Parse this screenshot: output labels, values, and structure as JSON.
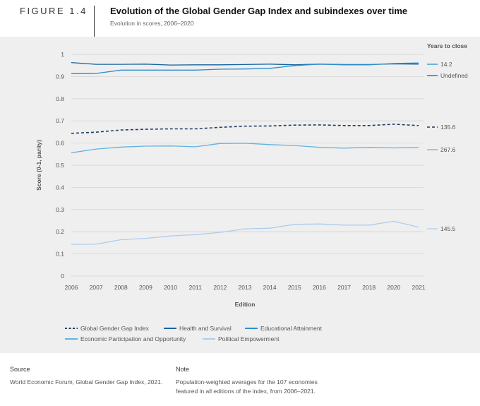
{
  "figure": {
    "label": "FIGURE 1.4",
    "title": "Evolution of the Global Gender Gap Index and subindexes over time",
    "subtitle": "Evolution in scores, 2006–2020"
  },
  "footer": {
    "source_heading": "Source",
    "source_text": "World Economic Forum, Global Gender Gap Index, 2021.",
    "note_heading": "Note",
    "note_text": "Population-weighted averages for the 107 economies featured in all editions of the index, from 2006–2021."
  },
  "colors": {
    "panel_bg": "#efefef",
    "gridline": "#d3d3d3",
    "global_index": "#1d3f66",
    "health": "#1363a0",
    "education": "#2e8fcc",
    "economic": "#62b2e1",
    "political": "#adcdee"
  },
  "chart_data": {
    "type": "line",
    "title": "Evolution of the Global Gender Gap Index and subindexes over time",
    "subtitle": "Evolution in scores, 2006–2020",
    "xlabel": "Edition",
    "ylabel": "Score (0-1, parity)",
    "ylim": [
      0,
      1
    ],
    "y_ticks": [
      "0",
      "0.1",
      "0.2",
      "0.3",
      "0.4",
      "0.5",
      "0.6",
      "0.7",
      "0.8",
      "0.9",
      "1"
    ],
    "x": [
      "2006",
      "2007",
      "2008",
      "2009",
      "2010",
      "2011",
      "2012",
      "2013",
      "2014",
      "2015",
      "2016",
      "2017",
      "2018",
      "2020",
      "2021"
    ],
    "grid": true,
    "legend_placement": "bottom",
    "years_to_close_heading": "Years to close",
    "series": [
      {
        "name": "Global Gender Gap Index",
        "style": "dashed",
        "color": "#1d3f66",
        "years_to_close": "135.6",
        "values": [
          0.644,
          0.649,
          0.659,
          0.662,
          0.664,
          0.664,
          0.671,
          0.676,
          0.677,
          0.681,
          0.682,
          0.679,
          0.679,
          0.685,
          0.679
        ]
      },
      {
        "name": "Health and Survival",
        "style": "solid",
        "color": "#1363a0",
        "years_to_close": "Undefined",
        "values": [
          0.963,
          0.955,
          0.955,
          0.956,
          0.952,
          0.953,
          0.953,
          0.954,
          0.956,
          0.953,
          0.956,
          0.954,
          0.954,
          0.957,
          0.956
        ]
      },
      {
        "name": "Educational Attainment",
        "style": "solid",
        "color": "#2e8fcc",
        "years_to_close": "14.2",
        "values": [
          0.913,
          0.914,
          0.929,
          0.929,
          0.929,
          0.929,
          0.933,
          0.934,
          0.937,
          0.949,
          0.956,
          0.953,
          0.953,
          0.959,
          0.961
        ]
      },
      {
        "name": "Economic Participation and Opportunity",
        "style": "solid",
        "color": "#62b2e1",
        "years_to_close": "267.6",
        "values": [
          0.556,
          0.573,
          0.582,
          0.586,
          0.587,
          0.583,
          0.598,
          0.599,
          0.593,
          0.589,
          0.581,
          0.577,
          0.581,
          0.578,
          0.58
        ]
      },
      {
        "name": "Political Empowerment",
        "style": "solid",
        "color": "#adcdee",
        "years_to_close": "145.5",
        "values": [
          0.143,
          0.144,
          0.164,
          0.17,
          0.181,
          0.187,
          0.197,
          0.213,
          0.216,
          0.233,
          0.235,
          0.23,
          0.23,
          0.247,
          0.221
        ]
      }
    ],
    "legend": [
      "Global Gender Gap Index",
      "Health and Survival",
      "Educational Attainment",
      "Economic Participation and Opportunity",
      "Political Empowerment"
    ]
  }
}
